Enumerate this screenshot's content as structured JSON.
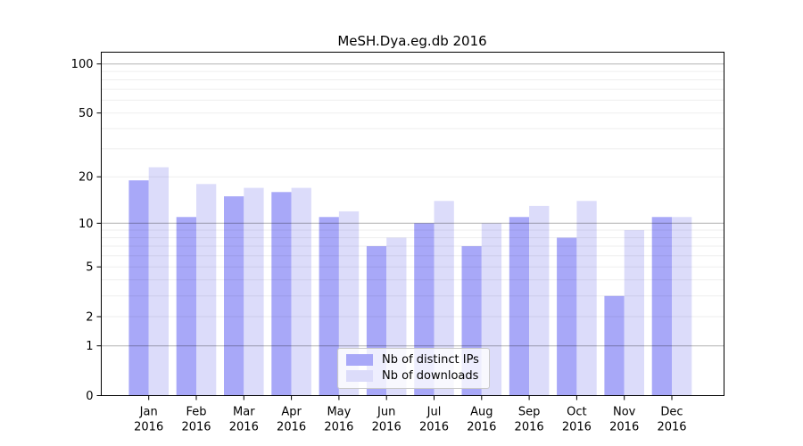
{
  "chart_data": {
    "type": "bar",
    "title": "MeSH.Dya.eg.db 2016",
    "categories": [
      "Jan",
      "Feb",
      "Mar",
      "Apr",
      "May",
      "Jun",
      "Jul",
      "Aug",
      "Sep",
      "Oct",
      "Nov",
      "Dec"
    ],
    "category_year": "2016",
    "series": [
      {
        "name": "Nb of distinct IPs",
        "color": "#a8a8f8",
        "values": [
          19,
          11,
          15,
          16,
          11,
          7,
          10,
          7,
          11,
          8,
          3,
          11
        ]
      },
      {
        "name": "Nb of downloads",
        "color": "#dcdcfa",
        "values": [
          23,
          18,
          17,
          17,
          12,
          8,
          14,
          10,
          13,
          14,
          9,
          11
        ]
      }
    ],
    "yscale": "log1p",
    "ylim": [
      0,
      100
    ],
    "y_tick_labels": [
      0,
      1,
      2,
      5,
      10,
      20,
      50,
      100
    ],
    "grid_minor_values": [
      2,
      3,
      4,
      5,
      6,
      7,
      8,
      9,
      20,
      30,
      40,
      50,
      60,
      70,
      80,
      90
    ],
    "grid_major_values": [
      1,
      10,
      100
    ],
    "xlabel": "",
    "ylabel": "",
    "legend_position": "inside-bottom-center",
    "colors": {
      "axis": "#000000",
      "grid_minor": "rgba(0,0,0,0.065)",
      "grid_major": "rgba(0,0,0,0.30)",
      "text": "#000000"
    }
  }
}
